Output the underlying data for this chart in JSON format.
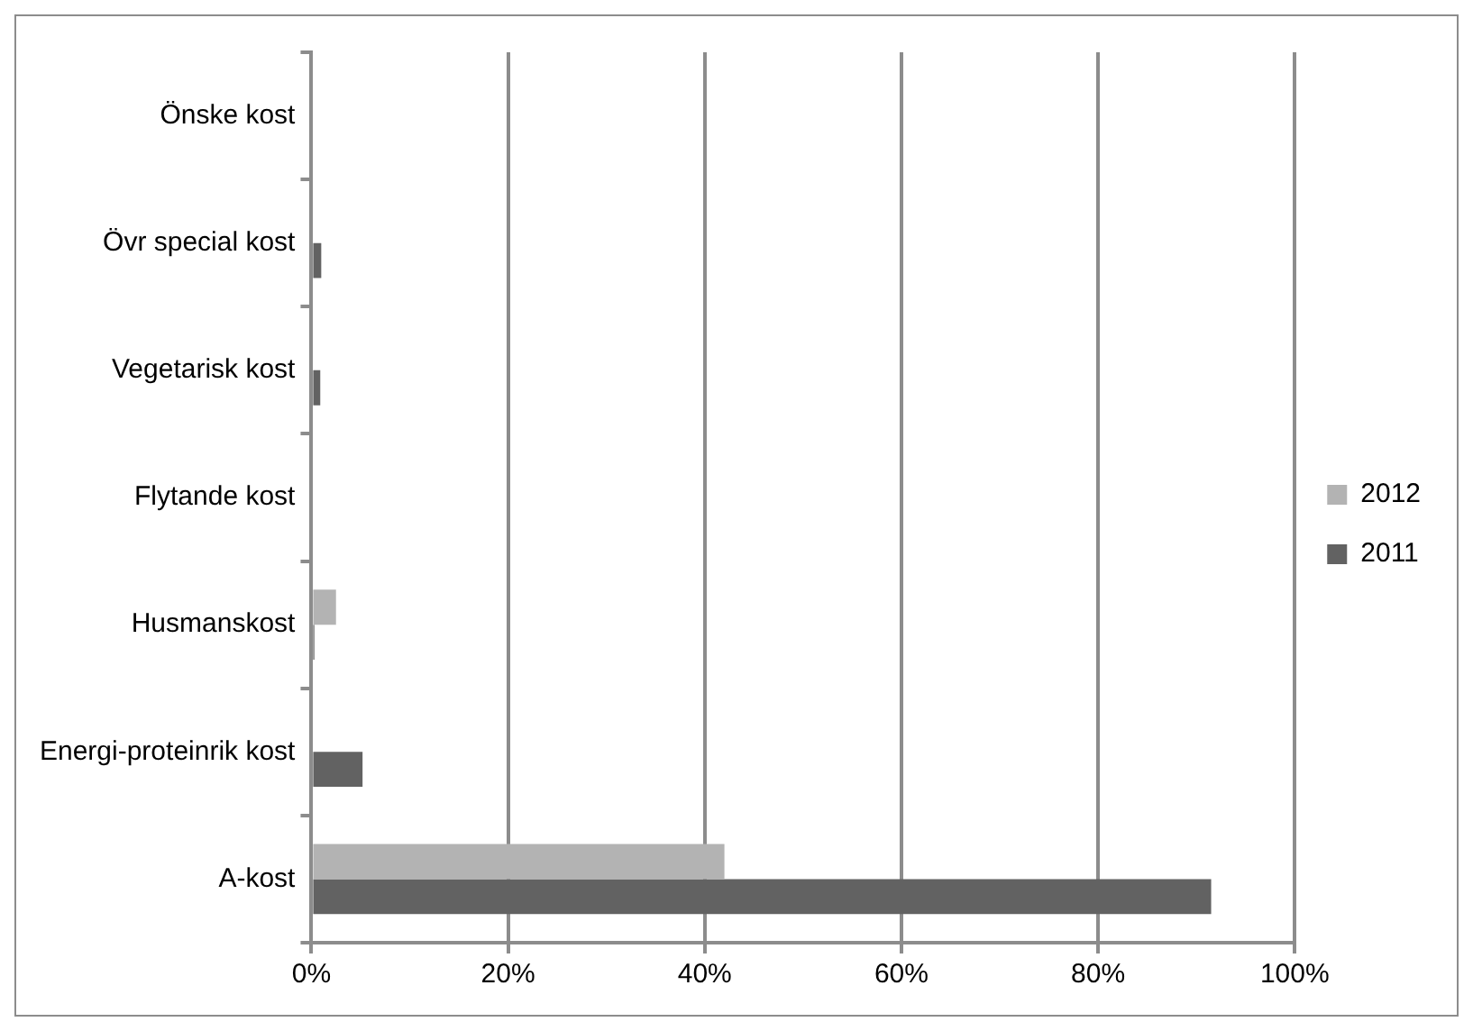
{
  "chart_data": {
    "type": "bar",
    "orientation": "horizontal",
    "categories": [
      "Önske kost",
      "Övr special kost",
      "Vegetarisk kost",
      "Flytande kost",
      "Husmanskost",
      "Energi-proteinrik kost",
      "A-kost"
    ],
    "series": [
      {
        "name": "2012",
        "color": "#b3b3b3",
        "values": [
          null,
          null,
          0,
          0,
          2.5,
          0,
          42
        ]
      },
      {
        "name": "2011",
        "color": "#626262",
        "values": [
          0,
          1,
          0.9,
          0,
          0.3,
          5.2,
          91.5
        ]
      }
    ],
    "xlim": [
      0,
      100
    ],
    "xticks": [
      {
        "value": 0,
        "label": "0%"
      },
      {
        "value": 20,
        "label": "20%"
      },
      {
        "value": 40,
        "label": "40%"
      },
      {
        "value": 60,
        "label": "60%"
      },
      {
        "value": 80,
        "label": "80%"
      },
      {
        "value": 100,
        "label": "100%"
      }
    ],
    "grid": "x",
    "legend": "right"
  }
}
